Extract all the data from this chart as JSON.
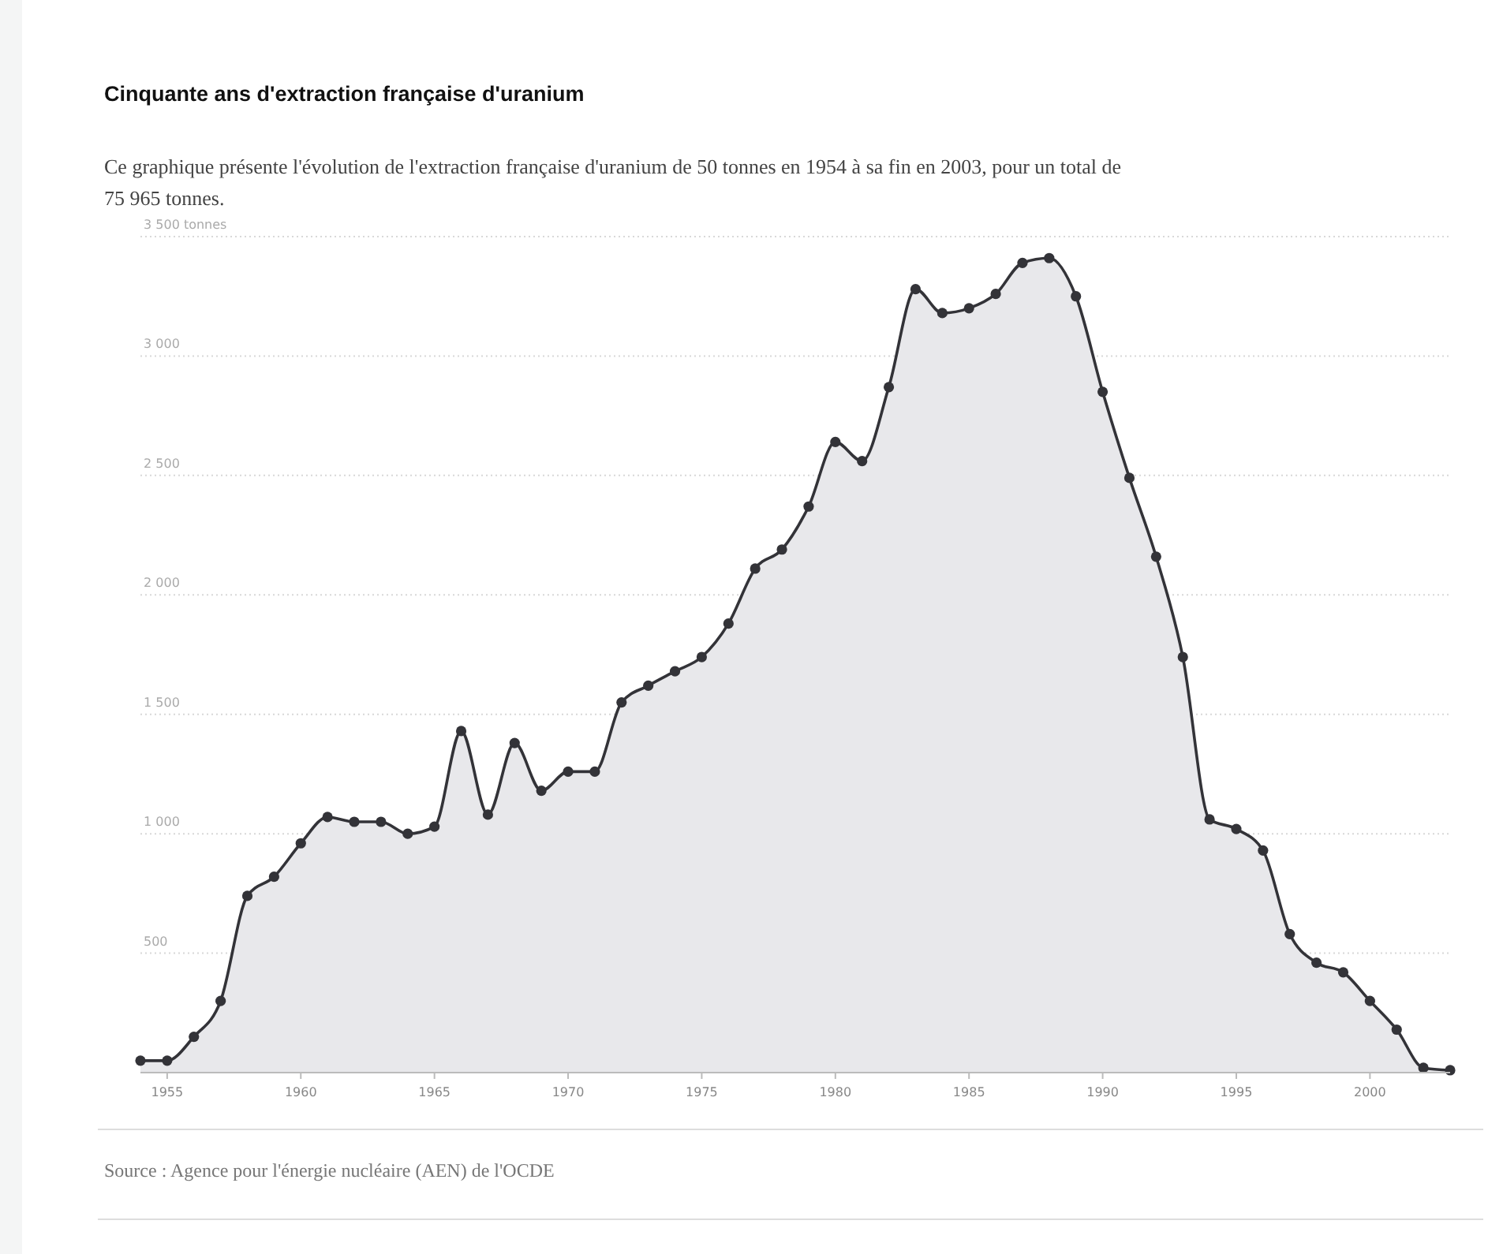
{
  "chart_data": {
    "type": "area",
    "title": "Cinquante ans d'extraction française d'uranium",
    "subtitle": "Ce graphique présente l'évolution de l'extraction française d'uranium de 50 tonnes en 1954 à sa fin en 2003, pour un total de 75 965 tonnes.",
    "x": [
      1954,
      1955,
      1956,
      1957,
      1958,
      1959,
      1960,
      1961,
      1962,
      1963,
      1964,
      1965,
      1966,
      1967,
      1968,
      1969,
      1970,
      1971,
      1972,
      1973,
      1974,
      1975,
      1976,
      1977,
      1978,
      1979,
      1980,
      1981,
      1982,
      1983,
      1984,
      1985,
      1986,
      1987,
      1988,
      1989,
      1990,
      1991,
      1992,
      1993,
      1994,
      1995,
      1996,
      1997,
      1998,
      1999,
      2000,
      2001,
      2002,
      2003
    ],
    "series": [
      {
        "color": "#333338",
        "values": [
          50,
          50,
          150,
          300,
          740,
          820,
          960,
          1070,
          1050,
          1050,
          1000,
          1030,
          1430,
          1080,
          1380,
          1180,
          1260,
          1260,
          1550,
          1620,
          1680,
          1740,
          1880,
          2110,
          2190,
          2370,
          2640,
          2560,
          2870,
          3280,
          3180,
          3200,
          3260,
          3390,
          3410,
          3250,
          2850,
          2490,
          2160,
          1740,
          1060,
          1020,
          930,
          580,
          460,
          420,
          300,
          180,
          20,
          10
        ]
      }
    ],
    "xlim": [
      1954,
      2003
    ],
    "xticks": [
      1955,
      1960,
      1965,
      1970,
      1975,
      1980,
      1985,
      1990,
      1995,
      2000
    ],
    "ylim": [
      0,
      3500
    ],
    "yticks": [
      500,
      {
        "value": 1000,
        "label": "1 000"
      },
      {
        "value": 1500,
        "label": "1 500"
      },
      {
        "value": 2000,
        "label": "2 000"
      },
      {
        "value": 2500,
        "label": "2 500"
      },
      {
        "value": 3000,
        "label": "3 000"
      },
      {
        "value": 3500,
        "label": "3 500 tonnes"
      }
    ],
    "grid": "y",
    "marker": "circle",
    "line_style": "solid",
    "annotations": [
      "Source : Agence pour l'énergie nucléaire (AEN) de l'OCDE"
    ]
  }
}
